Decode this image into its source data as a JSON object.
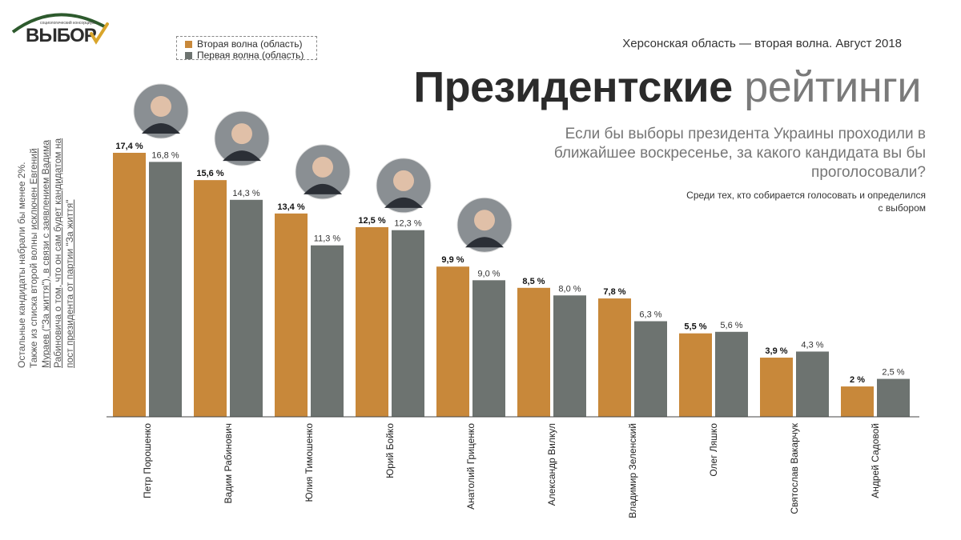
{
  "logo": {
    "small_text": "социологический консорциум",
    "name": "ВЫБОР"
  },
  "header": {
    "region": "Херсонская область — вторая волна. Август 2018",
    "title_bold": "Президентские",
    "title_light": "рейтинги",
    "question": "Если бы выборы президента Украины проходили в ближайшее воскресенье, за какого кандидата вы бы проголосовали?",
    "note": "Среди тех, кто собирается голосовать и определился с выбором"
  },
  "side_note": {
    "line1": "Остальные кандидаты набрали бы менее 2%.",
    "line2_plain": "Также из списка второй волны ",
    "line2_underlined": "исключен Евгений Мураев (\"За життя\"), в связи с заявлением Вадима Рабиновича о том, что он сам будет кандидатом на пост президента от партии \"За життя\""
  },
  "colors": {
    "second_wave": "#c8883a",
    "first_wave": "#6d7370",
    "axis": "#444444"
  },
  "chart_data": {
    "type": "bar",
    "categories": [
      "Петр Порошенко",
      "Вадим Рабинович",
      "Юлия Тимошенко",
      "Юрий Бойко",
      "Анатолий Гриценко",
      "Александр Вилкул",
      "Владимир Зеленский",
      "Олег Ляшко",
      "Святослав Вакарчук",
      "Андрей Садовой"
    ],
    "series": [
      {
        "name": "Вторая волна (область)",
        "values": [
          17.4,
          15.6,
          13.4,
          12.5,
          9.9,
          8.5,
          7.8,
          5.5,
          3.9,
          2
        ],
        "labels": [
          "17,4 %",
          "15,6 %",
          "13,4 %",
          "12,5 %",
          "9,9 %",
          "8,5 %",
          "7,8 %",
          "5,5 %",
          "3,9 %",
          "2 %"
        ]
      },
      {
        "name": "Первая волна (область)",
        "values": [
          16.8,
          14.3,
          11.3,
          12.3,
          9.0,
          8.0,
          6.3,
          5.6,
          4.3,
          2.5
        ],
        "labels": [
          "16,8 %",
          "14,3 %",
          "11,3 %",
          "12,3 %",
          "9,0 %",
          "8,0 %",
          "6,3 %",
          "5,6 %",
          "4,3 %",
          "2,5 %"
        ]
      }
    ],
    "ylim": [
      0,
      17.4
    ],
    "grid": false,
    "legend": "top-left",
    "photos_for": [
      "Петр Порошенко",
      "Вадим Рабинович",
      "Юлия Тимошенко",
      "Юрий Бойко",
      "Анатолий Гриценко"
    ]
  }
}
